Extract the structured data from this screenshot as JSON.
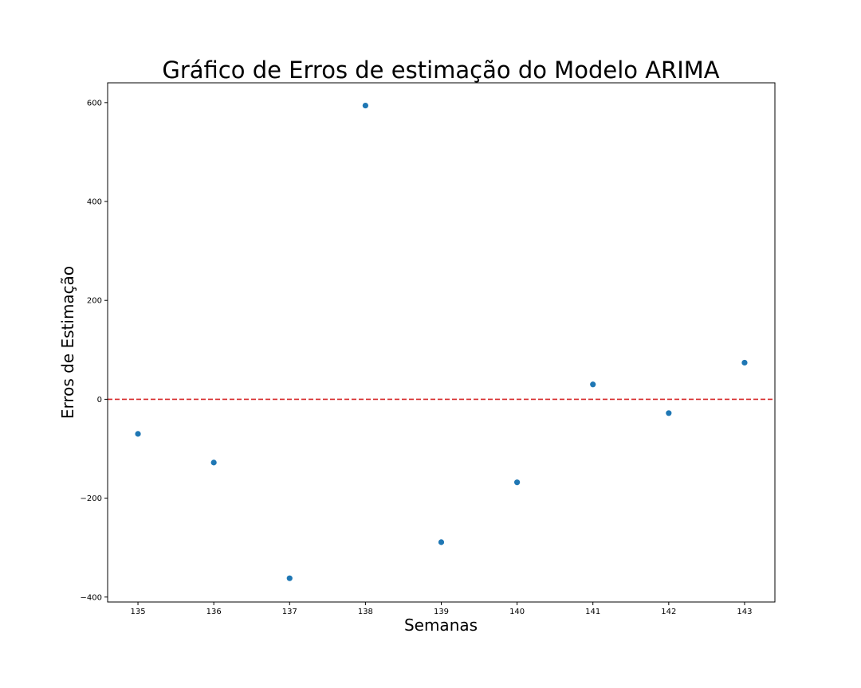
{
  "chart_data": {
    "type": "scatter",
    "title": "Gráfico de Erros de estimação do Modelo ARIMA",
    "xlabel": "Semanas",
    "ylabel": "Erros de Estimação",
    "xlim": [
      134.6,
      143.4
    ],
    "ylim": [
      -410,
      640
    ],
    "x_ticks": [
      135,
      136,
      137,
      138,
      139,
      140,
      141,
      142,
      143
    ],
    "y_ticks": [
      -400,
      -200,
      0,
      200,
      400,
      600
    ],
    "x_tick_labels": [
      "135",
      "136",
      "137",
      "138",
      "139",
      "140",
      "141",
      "142",
      "143"
    ],
    "y_tick_labels": [
      "−400",
      "−200",
      "0",
      "200",
      "400",
      "600"
    ],
    "grid": false,
    "series": [
      {
        "color": "#1f77b4",
        "points": [
          {
            "x": 135,
            "y": -70
          },
          {
            "x": 136,
            "y": -128
          },
          {
            "x": 137,
            "y": -362
          },
          {
            "x": 138,
            "y": 594
          },
          {
            "x": 139,
            "y": -289
          },
          {
            "x": 140,
            "y": -168
          },
          {
            "x": 141,
            "y": 30
          },
          {
            "x": 142,
            "y": -28
          },
          {
            "x": 143,
            "y": 74
          }
        ]
      }
    ],
    "reference_line": {
      "y": 0,
      "color": "#d62728",
      "style": "dashed"
    }
  }
}
